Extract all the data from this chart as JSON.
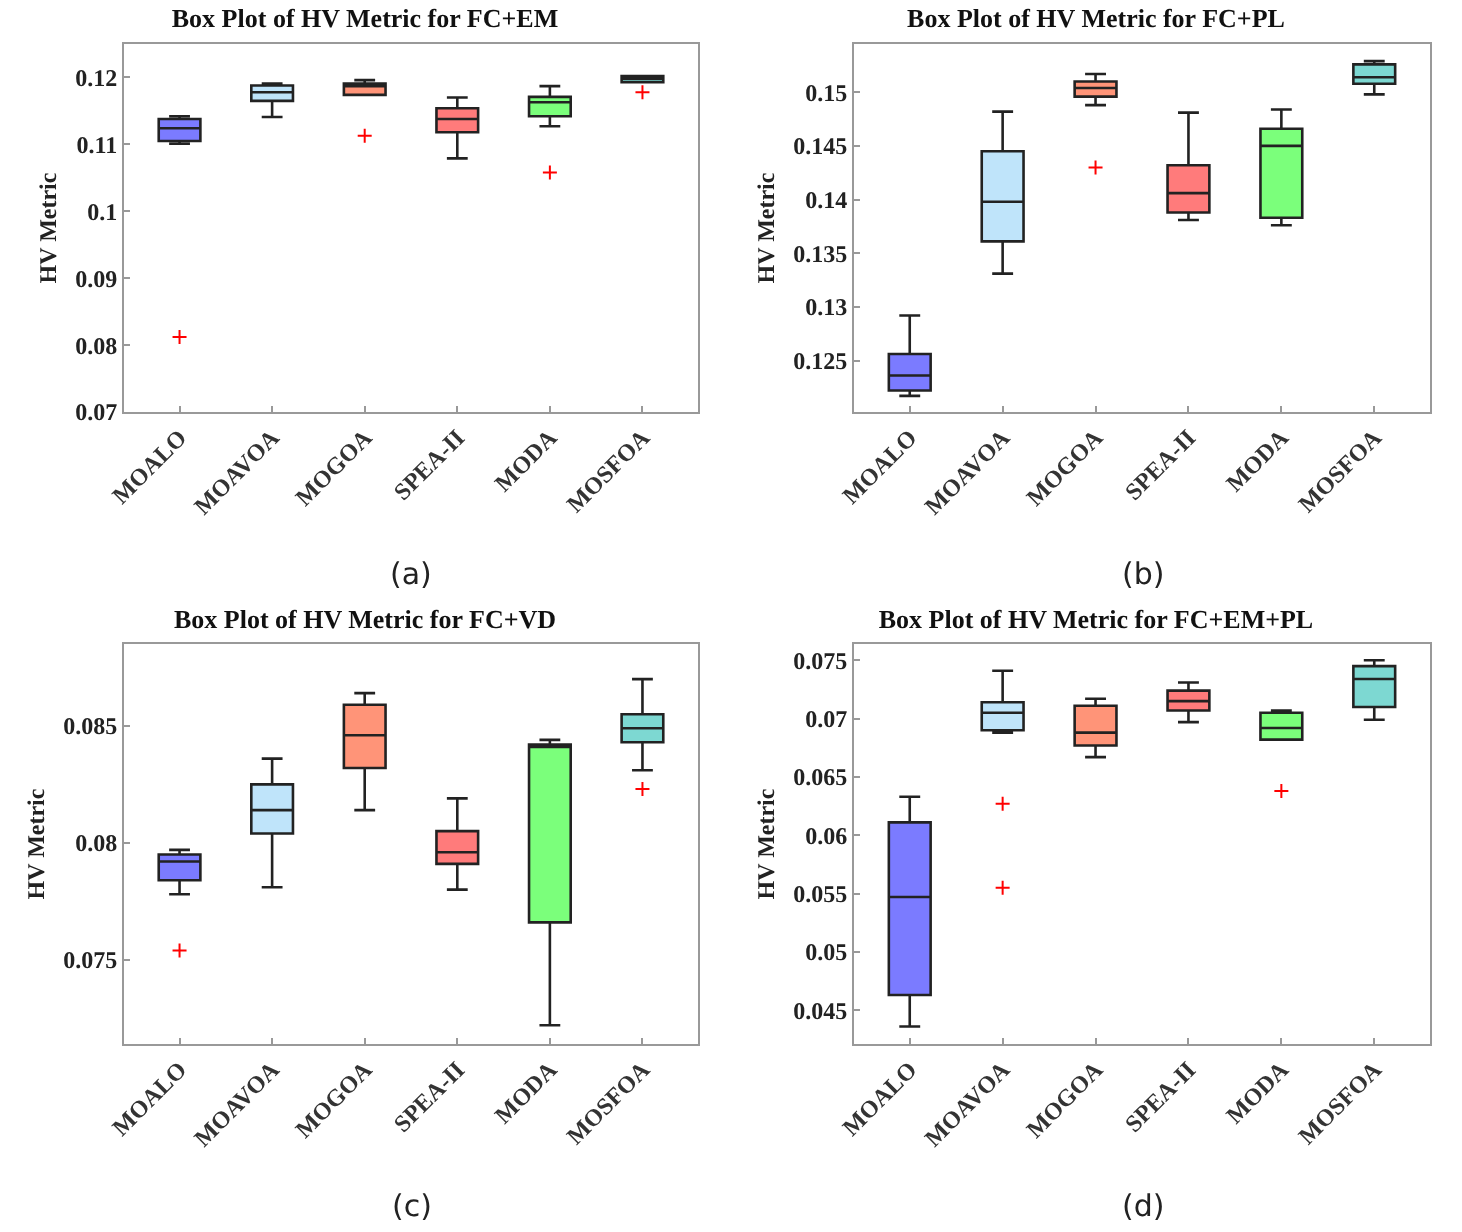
{
  "chart_data": [
    {
      "type": "box",
      "title": "Box Plot of HV Metric for FC+EM",
      "ylabel": "HV Metric",
      "annotations": [
        "(a)"
      ],
      "grid": false,
      "categories": [
        "MOALO",
        "MOAVOA",
        "MOGOA",
        "SPEA-II",
        "MODA",
        "MOSFOA"
      ],
      "colors": [
        "#7b7bff",
        "#bfe4fa",
        "#ff9478",
        "#ff7b7b",
        "#7bff7b",
        "#7dd8d2"
      ],
      "ylim": [
        0.07,
        0.125
      ],
      "yticks": [
        0.07,
        0.08,
        0.09,
        {
          "value": 0.1,
          "label": "0.1"
        },
        0.11,
        0.12
      ],
      "boxes": [
        {
          "low": 0.1101,
          "q1": 0.1105,
          "median": 0.1124,
          "q3": 0.1138,
          "high": 0.1142,
          "outliers": [
            0.0812
          ]
        },
        {
          "low": 0.1141,
          "q1": 0.1165,
          "median": 0.1178,
          "q3": 0.1188,
          "high": 0.1191
        },
        {
          "low": 0.1174,
          "q1": 0.1174,
          "median": 0.1187,
          "q3": 0.1191,
          "high": 0.1196,
          "outliers": [
            0.1113
          ]
        },
        {
          "low": 0.1079,
          "q1": 0.1118,
          "median": 0.1138,
          "q3": 0.1154,
          "high": 0.117
        },
        {
          "low": 0.1127,
          "q1": 0.1142,
          "median": 0.1163,
          "q3": 0.1171,
          "high": 0.1187,
          "outliers": [
            0.1058
          ]
        },
        {
          "low": 0.1193,
          "q1": 0.1193,
          "median": 0.1198,
          "q3": 0.1202,
          "high": 0.1202,
          "outliers": [
            0.1178
          ]
        }
      ]
    },
    {
      "type": "box",
      "title": "Box Plot of HV Metric for FC+PL",
      "ylabel": "HV Metric",
      "annotations": [
        "(b)"
      ],
      "grid": false,
      "categories": [
        "MOALO",
        "MOAVOA",
        "MOGOA",
        "SPEA-II",
        "MODA",
        "MOSFOA"
      ],
      "colors": [
        "#7b7bff",
        "#bfe4fa",
        "#ff9478",
        "#ff7b7b",
        "#7bff7b",
        "#7dd8d2"
      ],
      "ylim": [
        0.1202,
        0.1545
      ],
      "yticks": [
        0.125,
        {
          "value": 0.13,
          "label": "0.13"
        },
        0.135,
        {
          "value": 0.14,
          "label": "0.14"
        },
        0.145,
        {
          "value": 0.15,
          "label": "0.15"
        }
      ],
      "boxes": [
        {
          "low": 0.1217,
          "q1": 0.1222,
          "median": 0.1236,
          "q3": 0.1256,
          "high": 0.1292
        },
        {
          "low": 0.1331,
          "q1": 0.1361,
          "median": 0.1398,
          "q3": 0.1445,
          "high": 0.1482
        },
        {
          "low": 0.1488,
          "q1": 0.1496,
          "median": 0.1504,
          "q3": 0.151,
          "high": 0.1517,
          "outliers": [
            0.143
          ]
        },
        {
          "low": 0.1381,
          "q1": 0.1388,
          "median": 0.1406,
          "q3": 0.1432,
          "high": 0.1481
        },
        {
          "low": 0.1376,
          "q1": 0.1383,
          "median": 0.145,
          "q3": 0.1466,
          "high": 0.1484
        },
        {
          "low": 0.1498,
          "q1": 0.1508,
          "median": 0.1514,
          "q3": 0.1526,
          "high": 0.1529
        }
      ]
    },
    {
      "type": "box",
      "title": "Box Plot of HV Metric for FC+VD",
      "ylabel": "HV Metric",
      "annotations": [
        "(c)"
      ],
      "grid": false,
      "categories": [
        "MOALO",
        "MOAVOA",
        "MOGOA",
        "SPEA-II",
        "MODA",
        "MOSFOA"
      ],
      "colors": [
        "#7b7bff",
        "#bfe4fa",
        "#ff9478",
        "#ff7b7b",
        "#7bff7b",
        "#7dd8d2"
      ],
      "ylim": [
        0.0714,
        0.0885
      ],
      "yticks": [
        0.075,
        {
          "value": 0.08,
          "label": "0.08"
        },
        0.085
      ],
      "boxes": [
        {
          "low": 0.0778,
          "q1": 0.0784,
          "median": 0.0792,
          "q3": 0.0795,
          "high": 0.0797,
          "outliers": [
            0.0754
          ]
        },
        {
          "low": 0.0781,
          "q1": 0.0804,
          "median": 0.0814,
          "q3": 0.0825,
          "high": 0.0836
        },
        {
          "low": 0.0814,
          "q1": 0.0832,
          "median": 0.0846,
          "q3": 0.0859,
          "high": 0.0864
        },
        {
          "low": 0.078,
          "q1": 0.0791,
          "median": 0.0796,
          "q3": 0.0805,
          "high": 0.0819
        },
        {
          "low": 0.0722,
          "q1": 0.0766,
          "median": 0.0841,
          "q3": 0.0842,
          "high": 0.0844
        },
        {
          "low": 0.0831,
          "q1": 0.0843,
          "median": 0.0849,
          "q3": 0.0855,
          "high": 0.087,
          "outliers": [
            0.0823
          ]
        }
      ]
    },
    {
      "type": "box",
      "title": "Box Plot of HV Metric for FC+EM+PL",
      "ylabel": "HV Metric",
      "annotations": [
        "(d)"
      ],
      "grid": false,
      "categories": [
        "MOALO",
        "MOAVOA",
        "MOGOA",
        "SPEA-II",
        "MODA",
        "MOSFOA"
      ],
      "colors": [
        "#7b7bff",
        "#bfe4fa",
        "#ff9478",
        "#ff7b7b",
        "#7bff7b",
        "#7dd8d2"
      ],
      "ylim": [
        0.0421,
        0.0764
      ],
      "yticks": [
        0.045,
        {
          "value": 0.05,
          "label": "0.05"
        },
        0.055,
        {
          "value": 0.06,
          "label": "0.06"
        },
        0.065,
        {
          "value": 0.07,
          "label": "0.07"
        },
        0.075
      ],
      "boxes": [
        {
          "low": 0.0436,
          "q1": 0.0463,
          "median": 0.0547,
          "q3": 0.0611,
          "high": 0.0633
        },
        {
          "low": 0.0688,
          "q1": 0.069,
          "median": 0.0705,
          "q3": 0.0714,
          "high": 0.0741,
          "outliers": [
            0.0627,
            0.0555
          ]
        },
        {
          "low": 0.0667,
          "q1": 0.0677,
          "median": 0.0688,
          "q3": 0.0711,
          "high": 0.0717
        },
        {
          "low": 0.0697,
          "q1": 0.0707,
          "median": 0.0715,
          "q3": 0.0724,
          "high": 0.0731
        },
        {
          "low": 0.0682,
          "q1": 0.0682,
          "median": 0.0692,
          "q3": 0.0705,
          "high": 0.0707,
          "outliers": [
            0.0638
          ]
        },
        {
          "low": 0.0699,
          "q1": 0.071,
          "median": 0.0734,
          "q3": 0.0745,
          "high": 0.075
        }
      ]
    }
  ]
}
